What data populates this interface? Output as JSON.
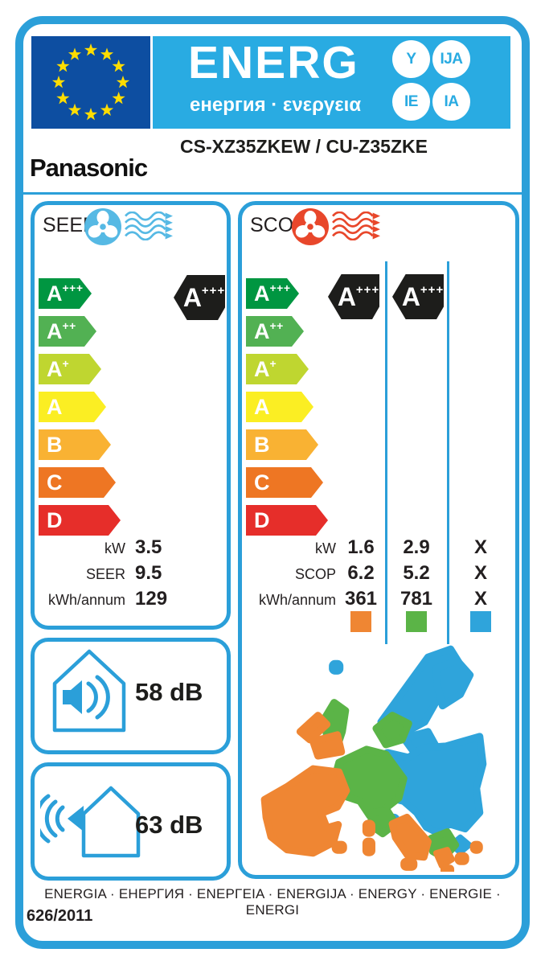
{
  "energ_logo": {
    "title": "ENERG",
    "subtitle": "енергия · ενεργεια",
    "circles": [
      "Y",
      "IJA",
      "IE",
      "IA"
    ]
  },
  "brand": "Panasonic",
  "model": "CS-XZ35ZKEW / CU-Z35ZKE",
  "scale": [
    {
      "letter": "A",
      "plus": "+++"
    },
    {
      "letter": "A",
      "plus": "++"
    },
    {
      "letter": "A",
      "plus": "+"
    },
    {
      "letter": "A",
      "plus": ""
    },
    {
      "letter": "B",
      "plus": ""
    },
    {
      "letter": "C",
      "plus": ""
    },
    {
      "letter": "D",
      "plus": ""
    }
  ],
  "seer": {
    "title": "SEER",
    "badge": {
      "letter": "A",
      "plus": "+++"
    },
    "rows": [
      {
        "label": "kW",
        "value": "3.5"
      },
      {
        "label": "SEER",
        "value": "9.5"
      },
      {
        "label": "kWh/annum",
        "value": "129"
      }
    ]
  },
  "scop": {
    "title": "SCOP",
    "badges": [
      {
        "letter": "A",
        "plus": "+++"
      },
      {
        "letter": "A",
        "plus": "+++"
      }
    ],
    "row_labels": [
      "kW",
      "SCOP",
      "kWh/annum"
    ],
    "columns": [
      {
        "values": [
          "1.6",
          "6.2",
          "361"
        ],
        "square_color": "#EF8633"
      },
      {
        "values": [
          "2.9",
          "5.2",
          "781"
        ],
        "square_color": "#5BB447"
      },
      {
        "values": [
          "X",
          "X",
          "X"
        ],
        "square_color": "#2FA4DB"
      }
    ]
  },
  "noise": {
    "indoor": "58 dB",
    "outdoor": "63 dB"
  },
  "footer": {
    "languages": "ENERGIA · ЕНЕРГИЯ · ΕΝΕΡΓΕΙΑ · ENERGIJA · ENERGY · ENERGIE · ENERGI",
    "regulation": "626/2011"
  },
  "colors": {
    "accent_blue": "#2B9FD9",
    "header_blue": "#29ABE2",
    "flag_blue": "#0D4EA1",
    "star_yellow": "#FFDD00",
    "black": "#1D1D1B",
    "seer_icon": "#56B9E4",
    "scop_icon": "#E8472B",
    "map_orange": "#EF8633",
    "map_green": "#5BB447",
    "map_blue": "#2FA4DB",
    "scale": [
      "#009641",
      "#52B153",
      "#BFD630",
      "#FBEE23",
      "#F9B233",
      "#EE7623",
      "#E62E2A"
    ]
  }
}
